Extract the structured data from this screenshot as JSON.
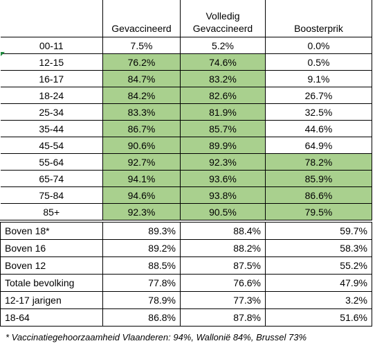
{
  "table": {
    "header": [
      "Gevaccineerd",
      "Volledig Gevaccineerd",
      "Boosterprik"
    ],
    "rows_top": [
      [
        "00-11",
        "7.5%",
        "5.2%",
        "0.0%"
      ],
      [
        "12-15",
        "76.2%",
        "74.6%",
        "0.5%"
      ],
      [
        "16-17",
        "84.7%",
        "83.2%",
        "9.1%"
      ],
      [
        "18-24",
        "84.2%",
        "82.6%",
        "26.7%"
      ],
      [
        "25-34",
        "83.3%",
        "81.9%",
        "32.5%"
      ],
      [
        "35-44",
        "86.7%",
        "85.7%",
        "44.6%"
      ],
      [
        "45-54",
        "90.6%",
        "89.9%",
        "64.9%"
      ],
      [
        "55-64",
        "92.7%",
        "92.3%",
        "78.2%"
      ],
      [
        "65-74",
        "94.1%",
        "93.6%",
        "85.9%"
      ],
      [
        "75-84",
        "94.6%",
        "93.8%",
        "86.6%"
      ],
      [
        "85+",
        "92.3%",
        "90.5%",
        "79.5%"
      ]
    ],
    "rows_bottom": [
      [
        "Boven 18*",
        "89.3%",
        "88.4%",
        "59.7%"
      ],
      [
        "Boven 16",
        "89.2%",
        "88.2%",
        "58.3%"
      ],
      [
        "Boven 12",
        "88.5%",
        "87.5%",
        "55.2%"
      ],
      [
        "Totale bevolking",
        "77.8%",
        "76.6%",
        "47.9%"
      ],
      [
        "12-17 jarigen",
        "78.9%",
        "77.3%",
        "3.2%"
      ],
      [
        "18-64",
        "86.8%",
        "87.8%",
        "51.6%"
      ]
    ]
  },
  "footnote": "* Vaccinatiegehoorzaamheid Vlaanderen: 94%, Wallonië 84%, Brussel 73%"
}
